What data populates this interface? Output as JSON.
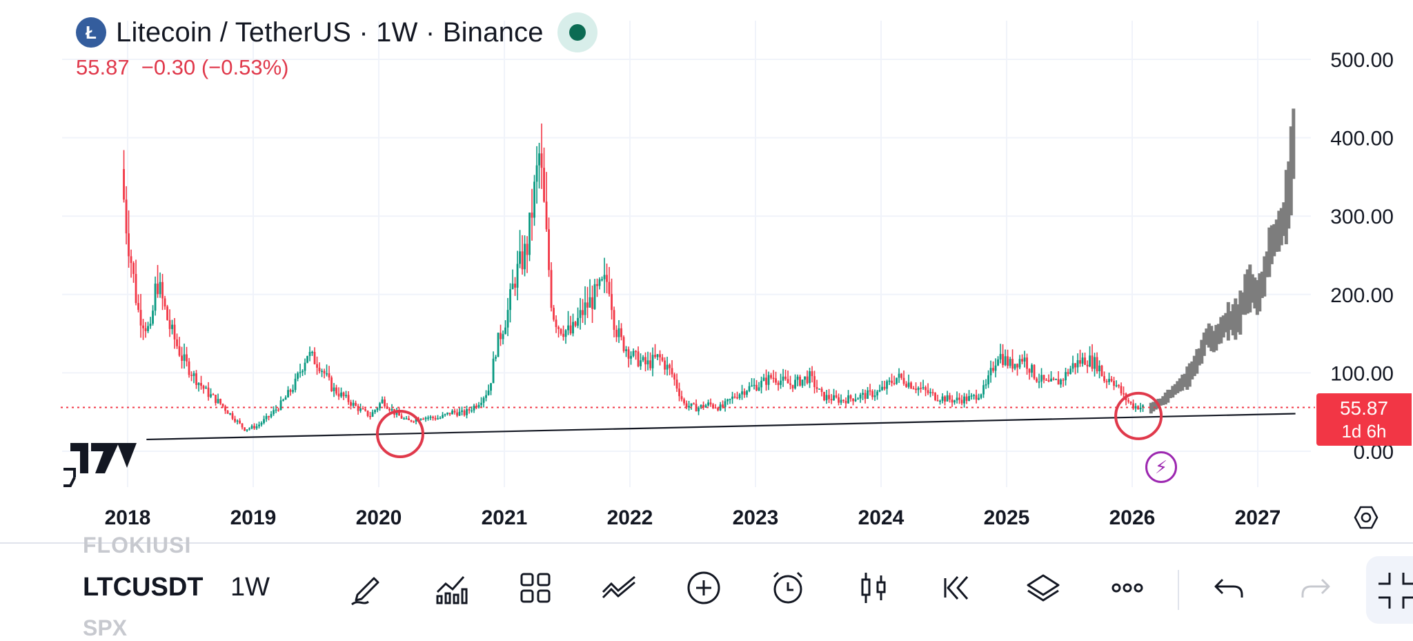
{
  "header": {
    "coin_letter": "Ł",
    "title": "Litecoin / TetherUS · 1W · Binance",
    "price_change": "55.87  −0.30 (−0.53%)"
  },
  "price_label": {
    "price": "55.87",
    "countdown": "1d 6h"
  },
  "chart_data": {
    "type": "candlestick",
    "title": "Litecoin / TetherUS · 1W · Binance",
    "ylim": [
      0,
      500
    ],
    "y_ticks": [
      "500.00",
      "400.00",
      "300.00",
      "200.00",
      "100.00",
      "0.00"
    ],
    "x_ticks": [
      "2018",
      "2019",
      "2020",
      "2021",
      "2022",
      "2023",
      "2024",
      "2025",
      "2026",
      "2027"
    ],
    "last_price": 55.87,
    "support_line": {
      "from": [
        2018.15,
        15
      ],
      "to": [
        2027.3,
        48
      ]
    },
    "annotations": [
      {
        "type": "circle",
        "x": 2020.17,
        "y": 22
      },
      {
        "type": "circle",
        "x": 2026.05,
        "y": 45
      }
    ],
    "series": [
      {
        "values": [
          [
            2017.97,
            360
          ],
          [
            2018.0,
            300
          ],
          [
            2018.05,
            240
          ],
          [
            2018.1,
            180
          ],
          [
            2018.2,
            150
          ],
          [
            2018.25,
            220
          ],
          [
            2018.35,
            160
          ],
          [
            2018.45,
            120
          ],
          [
            2018.55,
            95
          ],
          [
            2018.65,
            75
          ],
          [
            2018.75,
            62
          ],
          [
            2018.85,
            45
          ],
          [
            2018.95,
            28
          ],
          [
            2019.05,
            32
          ],
          [
            2019.15,
            45
          ],
          [
            2019.25,
            62
          ],
          [
            2019.35,
            85
          ],
          [
            2019.45,
            125
          ],
          [
            2019.55,
            110
          ],
          [
            2019.65,
            80
          ],
          [
            2019.75,
            68
          ],
          [
            2019.85,
            55
          ],
          [
            2019.95,
            45
          ],
          [
            2020.05,
            65
          ],
          [
            2020.15,
            48
          ],
          [
            2020.25,
            38
          ],
          [
            2020.35,
            44
          ],
          [
            2020.5,
            42
          ],
          [
            2020.6,
            50
          ],
          [
            2020.7,
            48
          ],
          [
            2020.8,
            60
          ],
          [
            2020.9,
            80
          ],
          [
            2020.95,
            130
          ],
          [
            2021.05,
            180
          ],
          [
            2021.1,
            220
          ],
          [
            2021.2,
            260
          ],
          [
            2021.3,
            380
          ],
          [
            2021.35,
            280
          ],
          [
            2021.4,
            180
          ],
          [
            2021.45,
            160
          ],
          [
            2021.55,
            150
          ],
          [
            2021.65,
            180
          ],
          [
            2021.75,
            200
          ],
          [
            2021.85,
            220
          ],
          [
            2021.9,
            160
          ],
          [
            2021.95,
            140
          ],
          [
            2022.05,
            120
          ],
          [
            2022.15,
            110
          ],
          [
            2022.25,
            120
          ],
          [
            2022.35,
            100
          ],
          [
            2022.45,
            60
          ],
          [
            2022.55,
            55
          ],
          [
            2022.65,
            60
          ],
          [
            2022.75,
            55
          ],
          [
            2022.85,
            70
          ],
          [
            2022.95,
            80
          ],
          [
            2023.05,
            85
          ],
          [
            2023.15,
            95
          ],
          [
            2023.3,
            85
          ],
          [
            2023.45,
            95
          ],
          [
            2023.55,
            70
          ],
          [
            2023.7,
            65
          ],
          [
            2023.85,
            70
          ],
          [
            2024.0,
            75
          ],
          [
            2024.15,
            95
          ],
          [
            2024.3,
            82
          ],
          [
            2024.45,
            70
          ],
          [
            2024.6,
            65
          ],
          [
            2024.75,
            68
          ],
          [
            2024.85,
            80
          ],
          [
            2024.95,
            125
          ],
          [
            2025.05,
            110
          ],
          [
            2025.15,
            120
          ],
          [
            2025.25,
            95
          ],
          [
            2025.35,
            85
          ],
          [
            2025.45,
            90
          ],
          [
            2025.55,
            110
          ],
          [
            2025.65,
            118
          ],
          [
            2025.75,
            110
          ],
          [
            2025.8,
            90
          ],
          [
            2025.85,
            95
          ],
          [
            2025.95,
            70
          ],
          [
            2026.02,
            58
          ],
          [
            2026.1,
            56
          ]
        ]
      },
      {
        "values": [
          [
            2026.15,
            55
          ],
          [
            2026.25,
            65
          ],
          [
            2026.35,
            80
          ],
          [
            2026.45,
            95
          ],
          [
            2026.55,
            125
          ],
          [
            2026.6,
            150
          ],
          [
            2026.65,
            140
          ],
          [
            2026.75,
            165
          ],
          [
            2026.85,
            170
          ],
          [
            2026.9,
            200
          ],
          [
            2026.95,
            210
          ],
          [
            2027.0,
            195
          ],
          [
            2027.05,
            220
          ],
          [
            2027.1,
            260
          ],
          [
            2027.2,
            290
          ],
          [
            2027.25,
            330
          ],
          [
            2027.3,
            420
          ]
        ]
      }
    ]
  },
  "toolbar": {
    "ghost_symbol_above": "FLOKIUSI",
    "symbol": "LTCUSDT",
    "interval": "1W",
    "ghost_symbol_below": "SPX"
  },
  "colors": {
    "up": "#089981",
    "down": "#f23645",
    "projection": "#7d7d7d",
    "accent": "#2962ff"
  }
}
